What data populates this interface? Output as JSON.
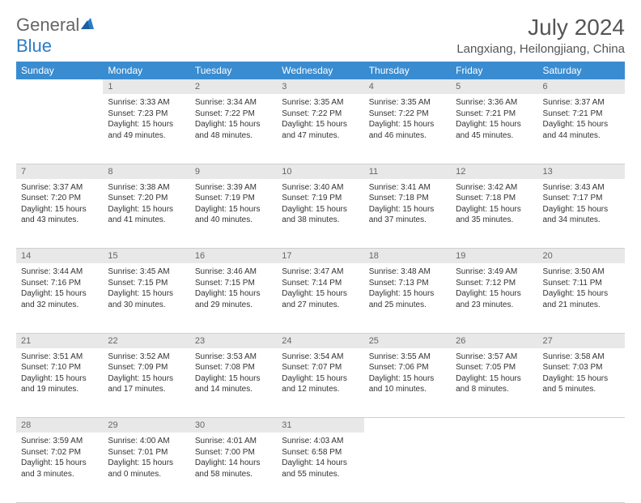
{
  "brand": {
    "part1": "General",
    "part2": "Blue"
  },
  "title": "July 2024",
  "location": "Langxiang, Heilongjiang, China",
  "colors": {
    "headerBg": "#3a8cd0",
    "headerText": "#ffffff",
    "dayStripBg": "#e8e8e8",
    "bodyText": "#333333"
  },
  "weekdays": [
    "Sunday",
    "Monday",
    "Tuesday",
    "Wednesday",
    "Thursday",
    "Friday",
    "Saturday"
  ],
  "weeks": [
    [
      null,
      {
        "n": "1",
        "sunrise": "Sunrise: 3:33 AM",
        "sunset": "Sunset: 7:23 PM",
        "day1": "Daylight: 15 hours",
        "day2": "and 49 minutes."
      },
      {
        "n": "2",
        "sunrise": "Sunrise: 3:34 AM",
        "sunset": "Sunset: 7:22 PM",
        "day1": "Daylight: 15 hours",
        "day2": "and 48 minutes."
      },
      {
        "n": "3",
        "sunrise": "Sunrise: 3:35 AM",
        "sunset": "Sunset: 7:22 PM",
        "day1": "Daylight: 15 hours",
        "day2": "and 47 minutes."
      },
      {
        "n": "4",
        "sunrise": "Sunrise: 3:35 AM",
        "sunset": "Sunset: 7:22 PM",
        "day1": "Daylight: 15 hours",
        "day2": "and 46 minutes."
      },
      {
        "n": "5",
        "sunrise": "Sunrise: 3:36 AM",
        "sunset": "Sunset: 7:21 PM",
        "day1": "Daylight: 15 hours",
        "day2": "and 45 minutes."
      },
      {
        "n": "6",
        "sunrise": "Sunrise: 3:37 AM",
        "sunset": "Sunset: 7:21 PM",
        "day1": "Daylight: 15 hours",
        "day2": "and 44 minutes."
      }
    ],
    [
      {
        "n": "7",
        "sunrise": "Sunrise: 3:37 AM",
        "sunset": "Sunset: 7:20 PM",
        "day1": "Daylight: 15 hours",
        "day2": "and 43 minutes."
      },
      {
        "n": "8",
        "sunrise": "Sunrise: 3:38 AM",
        "sunset": "Sunset: 7:20 PM",
        "day1": "Daylight: 15 hours",
        "day2": "and 41 minutes."
      },
      {
        "n": "9",
        "sunrise": "Sunrise: 3:39 AM",
        "sunset": "Sunset: 7:19 PM",
        "day1": "Daylight: 15 hours",
        "day2": "and 40 minutes."
      },
      {
        "n": "10",
        "sunrise": "Sunrise: 3:40 AM",
        "sunset": "Sunset: 7:19 PM",
        "day1": "Daylight: 15 hours",
        "day2": "and 38 minutes."
      },
      {
        "n": "11",
        "sunrise": "Sunrise: 3:41 AM",
        "sunset": "Sunset: 7:18 PM",
        "day1": "Daylight: 15 hours",
        "day2": "and 37 minutes."
      },
      {
        "n": "12",
        "sunrise": "Sunrise: 3:42 AM",
        "sunset": "Sunset: 7:18 PM",
        "day1": "Daylight: 15 hours",
        "day2": "and 35 minutes."
      },
      {
        "n": "13",
        "sunrise": "Sunrise: 3:43 AM",
        "sunset": "Sunset: 7:17 PM",
        "day1": "Daylight: 15 hours",
        "day2": "and 34 minutes."
      }
    ],
    [
      {
        "n": "14",
        "sunrise": "Sunrise: 3:44 AM",
        "sunset": "Sunset: 7:16 PM",
        "day1": "Daylight: 15 hours",
        "day2": "and 32 minutes."
      },
      {
        "n": "15",
        "sunrise": "Sunrise: 3:45 AM",
        "sunset": "Sunset: 7:15 PM",
        "day1": "Daylight: 15 hours",
        "day2": "and 30 minutes."
      },
      {
        "n": "16",
        "sunrise": "Sunrise: 3:46 AM",
        "sunset": "Sunset: 7:15 PM",
        "day1": "Daylight: 15 hours",
        "day2": "and 29 minutes."
      },
      {
        "n": "17",
        "sunrise": "Sunrise: 3:47 AM",
        "sunset": "Sunset: 7:14 PM",
        "day1": "Daylight: 15 hours",
        "day2": "and 27 minutes."
      },
      {
        "n": "18",
        "sunrise": "Sunrise: 3:48 AM",
        "sunset": "Sunset: 7:13 PM",
        "day1": "Daylight: 15 hours",
        "day2": "and 25 minutes."
      },
      {
        "n": "19",
        "sunrise": "Sunrise: 3:49 AM",
        "sunset": "Sunset: 7:12 PM",
        "day1": "Daylight: 15 hours",
        "day2": "and 23 minutes."
      },
      {
        "n": "20",
        "sunrise": "Sunrise: 3:50 AM",
        "sunset": "Sunset: 7:11 PM",
        "day1": "Daylight: 15 hours",
        "day2": "and 21 minutes."
      }
    ],
    [
      {
        "n": "21",
        "sunrise": "Sunrise: 3:51 AM",
        "sunset": "Sunset: 7:10 PM",
        "day1": "Daylight: 15 hours",
        "day2": "and 19 minutes."
      },
      {
        "n": "22",
        "sunrise": "Sunrise: 3:52 AM",
        "sunset": "Sunset: 7:09 PM",
        "day1": "Daylight: 15 hours",
        "day2": "and 17 minutes."
      },
      {
        "n": "23",
        "sunrise": "Sunrise: 3:53 AM",
        "sunset": "Sunset: 7:08 PM",
        "day1": "Daylight: 15 hours",
        "day2": "and 14 minutes."
      },
      {
        "n": "24",
        "sunrise": "Sunrise: 3:54 AM",
        "sunset": "Sunset: 7:07 PM",
        "day1": "Daylight: 15 hours",
        "day2": "and 12 minutes."
      },
      {
        "n": "25",
        "sunrise": "Sunrise: 3:55 AM",
        "sunset": "Sunset: 7:06 PM",
        "day1": "Daylight: 15 hours",
        "day2": "and 10 minutes."
      },
      {
        "n": "26",
        "sunrise": "Sunrise: 3:57 AM",
        "sunset": "Sunset: 7:05 PM",
        "day1": "Daylight: 15 hours",
        "day2": "and 8 minutes."
      },
      {
        "n": "27",
        "sunrise": "Sunrise: 3:58 AM",
        "sunset": "Sunset: 7:03 PM",
        "day1": "Daylight: 15 hours",
        "day2": "and 5 minutes."
      }
    ],
    [
      {
        "n": "28",
        "sunrise": "Sunrise: 3:59 AM",
        "sunset": "Sunset: 7:02 PM",
        "day1": "Daylight: 15 hours",
        "day2": "and 3 minutes."
      },
      {
        "n": "29",
        "sunrise": "Sunrise: 4:00 AM",
        "sunset": "Sunset: 7:01 PM",
        "day1": "Daylight: 15 hours",
        "day2": "and 0 minutes."
      },
      {
        "n": "30",
        "sunrise": "Sunrise: 4:01 AM",
        "sunset": "Sunset: 7:00 PM",
        "day1": "Daylight: 14 hours",
        "day2": "and 58 minutes."
      },
      {
        "n": "31",
        "sunrise": "Sunrise: 4:03 AM",
        "sunset": "Sunset: 6:58 PM",
        "day1": "Daylight: 14 hours",
        "day2": "and 55 minutes."
      },
      null,
      null,
      null
    ]
  ]
}
